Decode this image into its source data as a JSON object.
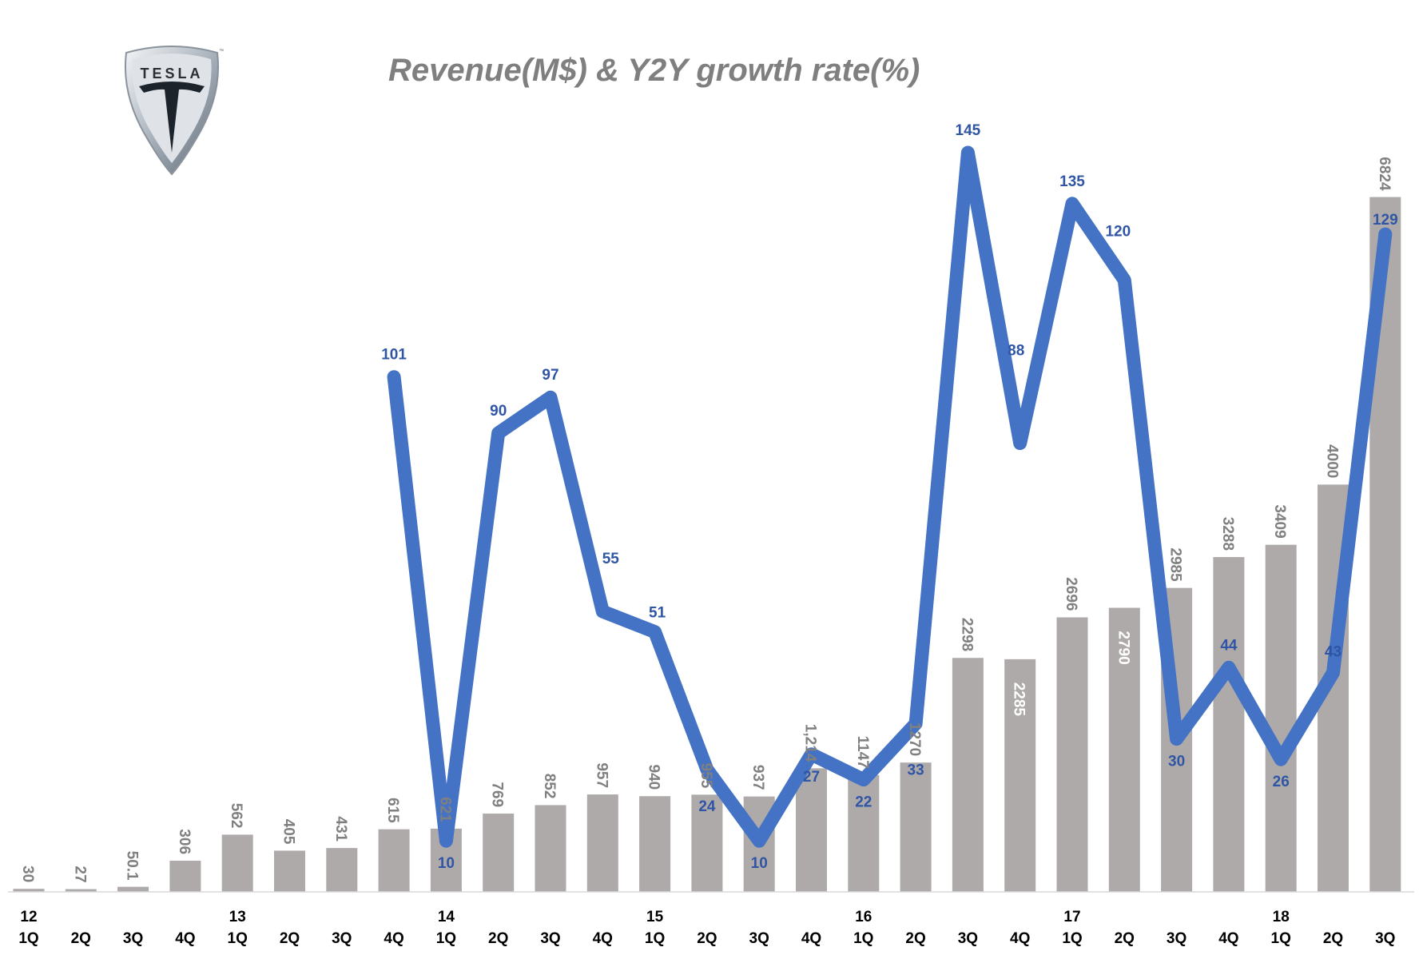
{
  "logo": {
    "text": "TESLA",
    "trademark": "™"
  },
  "chart_data": {
    "type": "bar+line",
    "title": "Revenue(M$) & Y2Y growth rate(%)",
    "categories": [
      "1Q",
      "2Q",
      "3Q",
      "4Q",
      "1Q",
      "2Q",
      "3Q",
      "4Q",
      "1Q",
      "2Q",
      "3Q",
      "4Q",
      "1Q",
      "2Q",
      "3Q",
      "4Q",
      "1Q",
      "2Q",
      "3Q",
      "4Q",
      "1Q",
      "2Q",
      "3Q",
      "4Q",
      "1Q",
      "2Q",
      "3Q"
    ],
    "year_labels": [
      "12",
      "",
      "",
      "",
      "13",
      "",
      "",
      "",
      "14",
      "",
      "",
      "",
      "15",
      "",
      "",
      "",
      "16",
      "",
      "",
      "",
      "17",
      "",
      "",
      "",
      "18",
      "",
      ""
    ],
    "series": [
      {
        "name": "Revenue(M$)",
        "type": "bar",
        "color": "#aeaaaa",
        "values": [
          30,
          27,
          50.1,
          306,
          562,
          405,
          431,
          615,
          621,
          769,
          852,
          957,
          940,
          955,
          937,
          1214,
          1147,
          1270,
          2298,
          2285,
          2696,
          2790,
          2985,
          3288,
          3409,
          4000,
          6824
        ],
        "labels": [
          "30",
          "27",
          "50.1",
          "306",
          "562",
          "405",
          "431",
          "615",
          "621",
          "769",
          "852",
          "957",
          "940",
          "955",
          "937",
          "1,214",
          "1147",
          "1270",
          "2298",
          "2285",
          "2696",
          "2790",
          "2985",
          "3288",
          "3409",
          "4000",
          "6824"
        ]
      },
      {
        "name": "Y2Y growth rate(%)",
        "type": "line",
        "color": "#4472c4",
        "values": [
          null,
          null,
          null,
          null,
          null,
          null,
          null,
          101,
          10,
          90,
          97,
          55,
          51,
          24,
          10,
          27,
          22,
          33,
          145,
          88,
          135,
          120,
          30,
          44,
          26,
          43,
          129
        ]
      }
    ],
    "bar_ylim": [
      0,
      7260
    ],
    "line_ylim": [
      0,
      145
    ],
    "grid": false,
    "legend": "none"
  }
}
